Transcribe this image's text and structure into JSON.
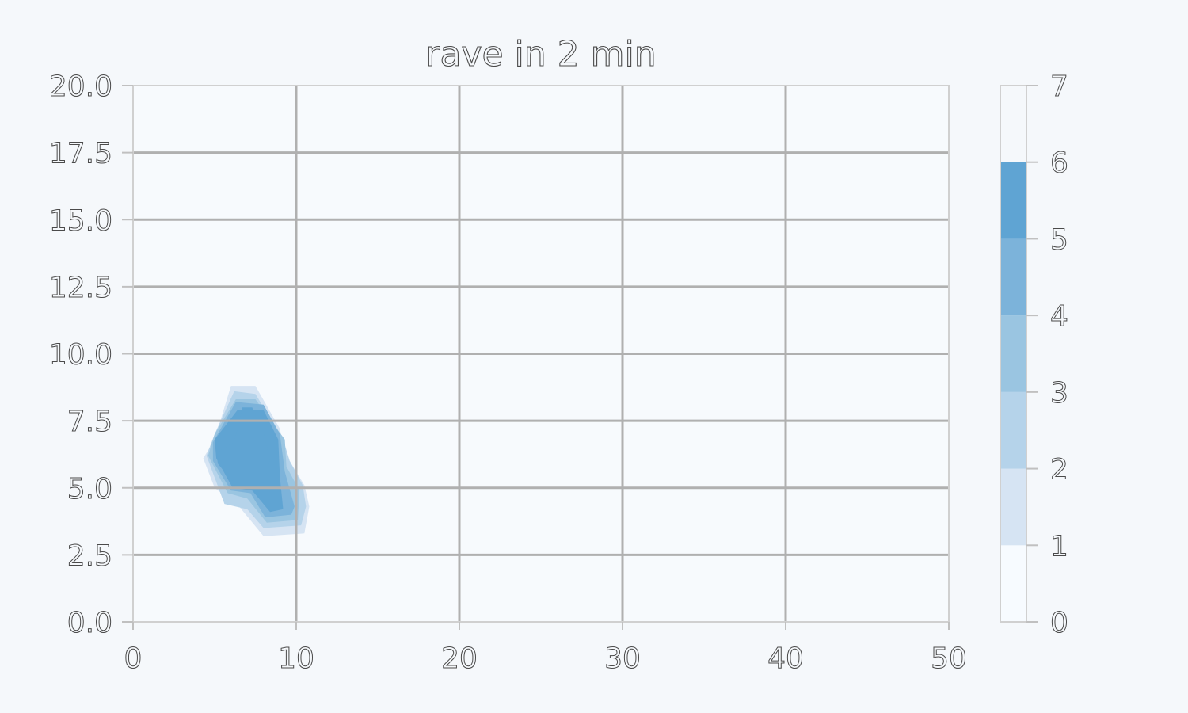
{
  "chart_data": {
    "type": "contour",
    "title": "rave in 2 min",
    "xlabel": "",
    "ylabel": "",
    "xlim": [
      0,
      50
    ],
    "ylim": [
      0,
      20
    ],
    "xticks": [
      "0",
      "10",
      "20",
      "30",
      "40",
      "50"
    ],
    "yticks": [
      "0.0",
      "2.5",
      "5.0",
      "7.5",
      "10.0",
      "12.5",
      "15.0",
      "17.5",
      "20.0"
    ],
    "grid": true,
    "colorbar": {
      "levels": [
        0,
        1,
        2,
        3,
        4,
        5,
        6,
        7
      ],
      "ticks": [
        "0",
        "1",
        "2",
        "3",
        "4",
        "5",
        "6",
        "7"
      ],
      "colors": [
        "#f7fbff",
        "#d6e4f3",
        "#b5d3ea",
        "#9ac5e1",
        "#7cb3da",
        "#5fa4d3"
      ]
    },
    "contours": [
      {
        "level": 1,
        "points": [
          [
            5.0,
            6.8
          ],
          [
            6.0,
            8.8
          ],
          [
            7.5,
            8.8
          ],
          [
            9.0,
            7.2
          ],
          [
            9.3,
            6.3
          ],
          [
            10.5,
            5.1
          ],
          [
            10.8,
            4.3
          ],
          [
            10.5,
            3.3
          ],
          [
            8.0,
            3.2
          ],
          [
            6.5,
            4.3
          ],
          [
            5.0,
            5.0
          ],
          [
            4.3,
            6.1
          ]
        ]
      },
      {
        "level": 2,
        "points": [
          [
            5.0,
            7.0
          ],
          [
            6.2,
            8.6
          ],
          [
            7.5,
            8.5
          ],
          [
            9.2,
            6.8
          ],
          [
            9.6,
            6.0
          ],
          [
            10.4,
            5.1
          ],
          [
            10.6,
            4.3
          ],
          [
            10.3,
            3.6
          ],
          [
            8.0,
            3.5
          ],
          [
            7.0,
            4.2
          ],
          [
            5.6,
            4.4
          ],
          [
            4.5,
            6.2
          ]
        ]
      },
      {
        "level": 3,
        "points": [
          [
            5.0,
            7.0
          ],
          [
            6.3,
            8.3
          ],
          [
            7.5,
            8.3
          ],
          [
            9.3,
            6.8
          ],
          [
            9.4,
            5.8
          ],
          [
            10.2,
            4.9
          ],
          [
            10.1,
            3.8
          ],
          [
            8.2,
            3.7
          ],
          [
            7.0,
            4.6
          ],
          [
            5.8,
            4.8
          ],
          [
            4.6,
            6.2
          ]
        ]
      },
      {
        "level": 4,
        "points": [
          [
            4.9,
            6.7
          ],
          [
            6.3,
            8.2
          ],
          [
            8.0,
            8.1
          ],
          [
            9.0,
            7.0
          ],
          [
            9.3,
            5.6
          ],
          [
            9.9,
            4.3
          ],
          [
            9.7,
            4.0
          ],
          [
            8.1,
            3.9
          ],
          [
            7.2,
            4.8
          ],
          [
            6.0,
            4.9
          ],
          [
            4.9,
            6.0
          ]
        ]
      },
      {
        "level": 5,
        "points": [
          [
            5.0,
            6.8
          ],
          [
            6.4,
            7.9
          ],
          [
            8.0,
            7.9
          ],
          [
            8.9,
            6.8
          ],
          [
            9.0,
            5.4
          ],
          [
            9.2,
            4.2
          ],
          [
            8.4,
            4.1
          ],
          [
            7.3,
            4.9
          ],
          [
            6.1,
            5.0
          ],
          [
            5.1,
            6.1
          ]
        ]
      },
      {
        "level": 6,
        "points": [
          [
            5.1,
            6.3
          ],
          [
            6.2,
            6.7
          ],
          [
            6.7,
            8.0
          ],
          [
            7.3,
            8.0
          ],
          [
            8.0,
            7.1
          ],
          [
            8.4,
            6.0
          ],
          [
            8.0,
            5.2
          ],
          [
            7.0,
            5.0
          ],
          [
            6.0,
            5.3
          ],
          [
            5.2,
            5.9
          ]
        ]
      }
    ]
  }
}
